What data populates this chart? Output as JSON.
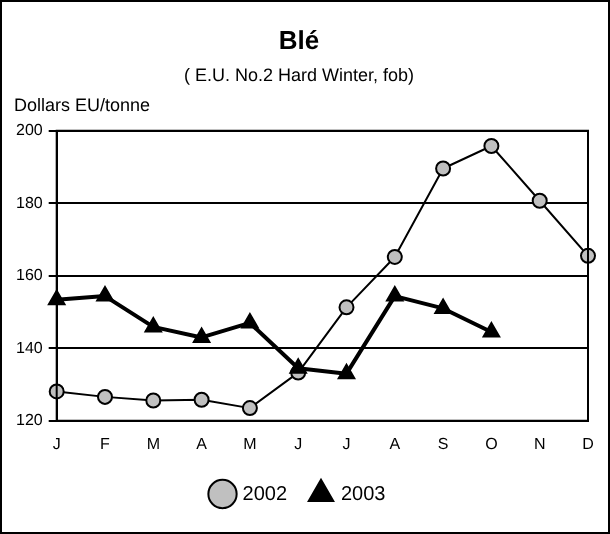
{
  "chart_data": {
    "type": "line",
    "title": "Blé",
    "subtitle": "( E.U. No.2 Hard Winter, fob)",
    "ylabel": "Dollars EU/tonne",
    "categories": [
      "J",
      "F",
      "M",
      "A",
      "M",
      "J",
      "J",
      "A",
      "S",
      "O",
      "N",
      "D"
    ],
    "series": [
      {
        "name": "2002",
        "color": "#c0c0c0",
        "marker": "circle",
        "values": [
          128.1,
          126.6,
          125.6,
          125.8,
          123.5,
          133.3,
          151.3,
          165.2,
          189.6,
          195.8,
          180.7,
          165.5
        ]
      },
      {
        "name": "2003",
        "color": "#000000",
        "marker": "triangle",
        "values": [
          153.4,
          154.4,
          145.9,
          143,
          147,
          134.5,
          133,
          154.4,
          151,
          144.5,
          null,
          null
        ]
      }
    ],
    "ylim": [
      120,
      200
    ],
    "yticks": [
      120,
      140,
      160,
      180,
      200
    ],
    "grid": "y",
    "legend": "bottom"
  }
}
